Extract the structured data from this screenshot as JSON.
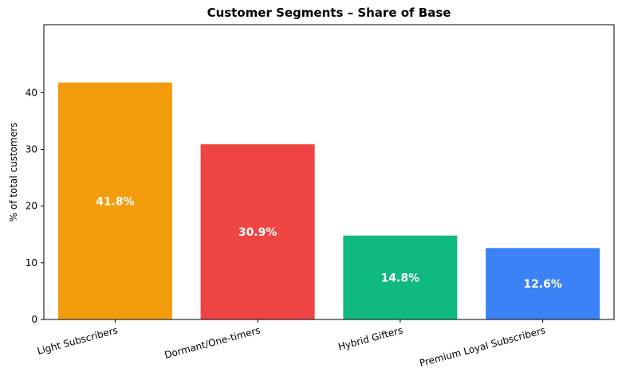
{
  "chart_data": {
    "type": "bar",
    "title": "Customer Segments – Share of Base",
    "xlabel": "",
    "ylabel": "% of total customers",
    "categories": [
      "Light Subscribers",
      "Dormant/One-timers",
      "Hybrid Gifters",
      "Premium Loyal Subscribers"
    ],
    "values": [
      41.8,
      30.9,
      14.8,
      12.6
    ],
    "value_labels": [
      "41.8%",
      "30.9%",
      "14.8%",
      "12.6%"
    ],
    "colors": [
      "#F39C0B",
      "#EF4444",
      "#10B981",
      "#3B82F6"
    ],
    "ylim": [
      0,
      52
    ],
    "yticks": [
      0,
      10,
      20,
      30,
      40
    ],
    "ytick_labels": [
      "0",
      "10",
      "20",
      "30",
      "40"
    ],
    "grid": false,
    "legend": "none",
    "xtick_rotation": "slanted"
  }
}
